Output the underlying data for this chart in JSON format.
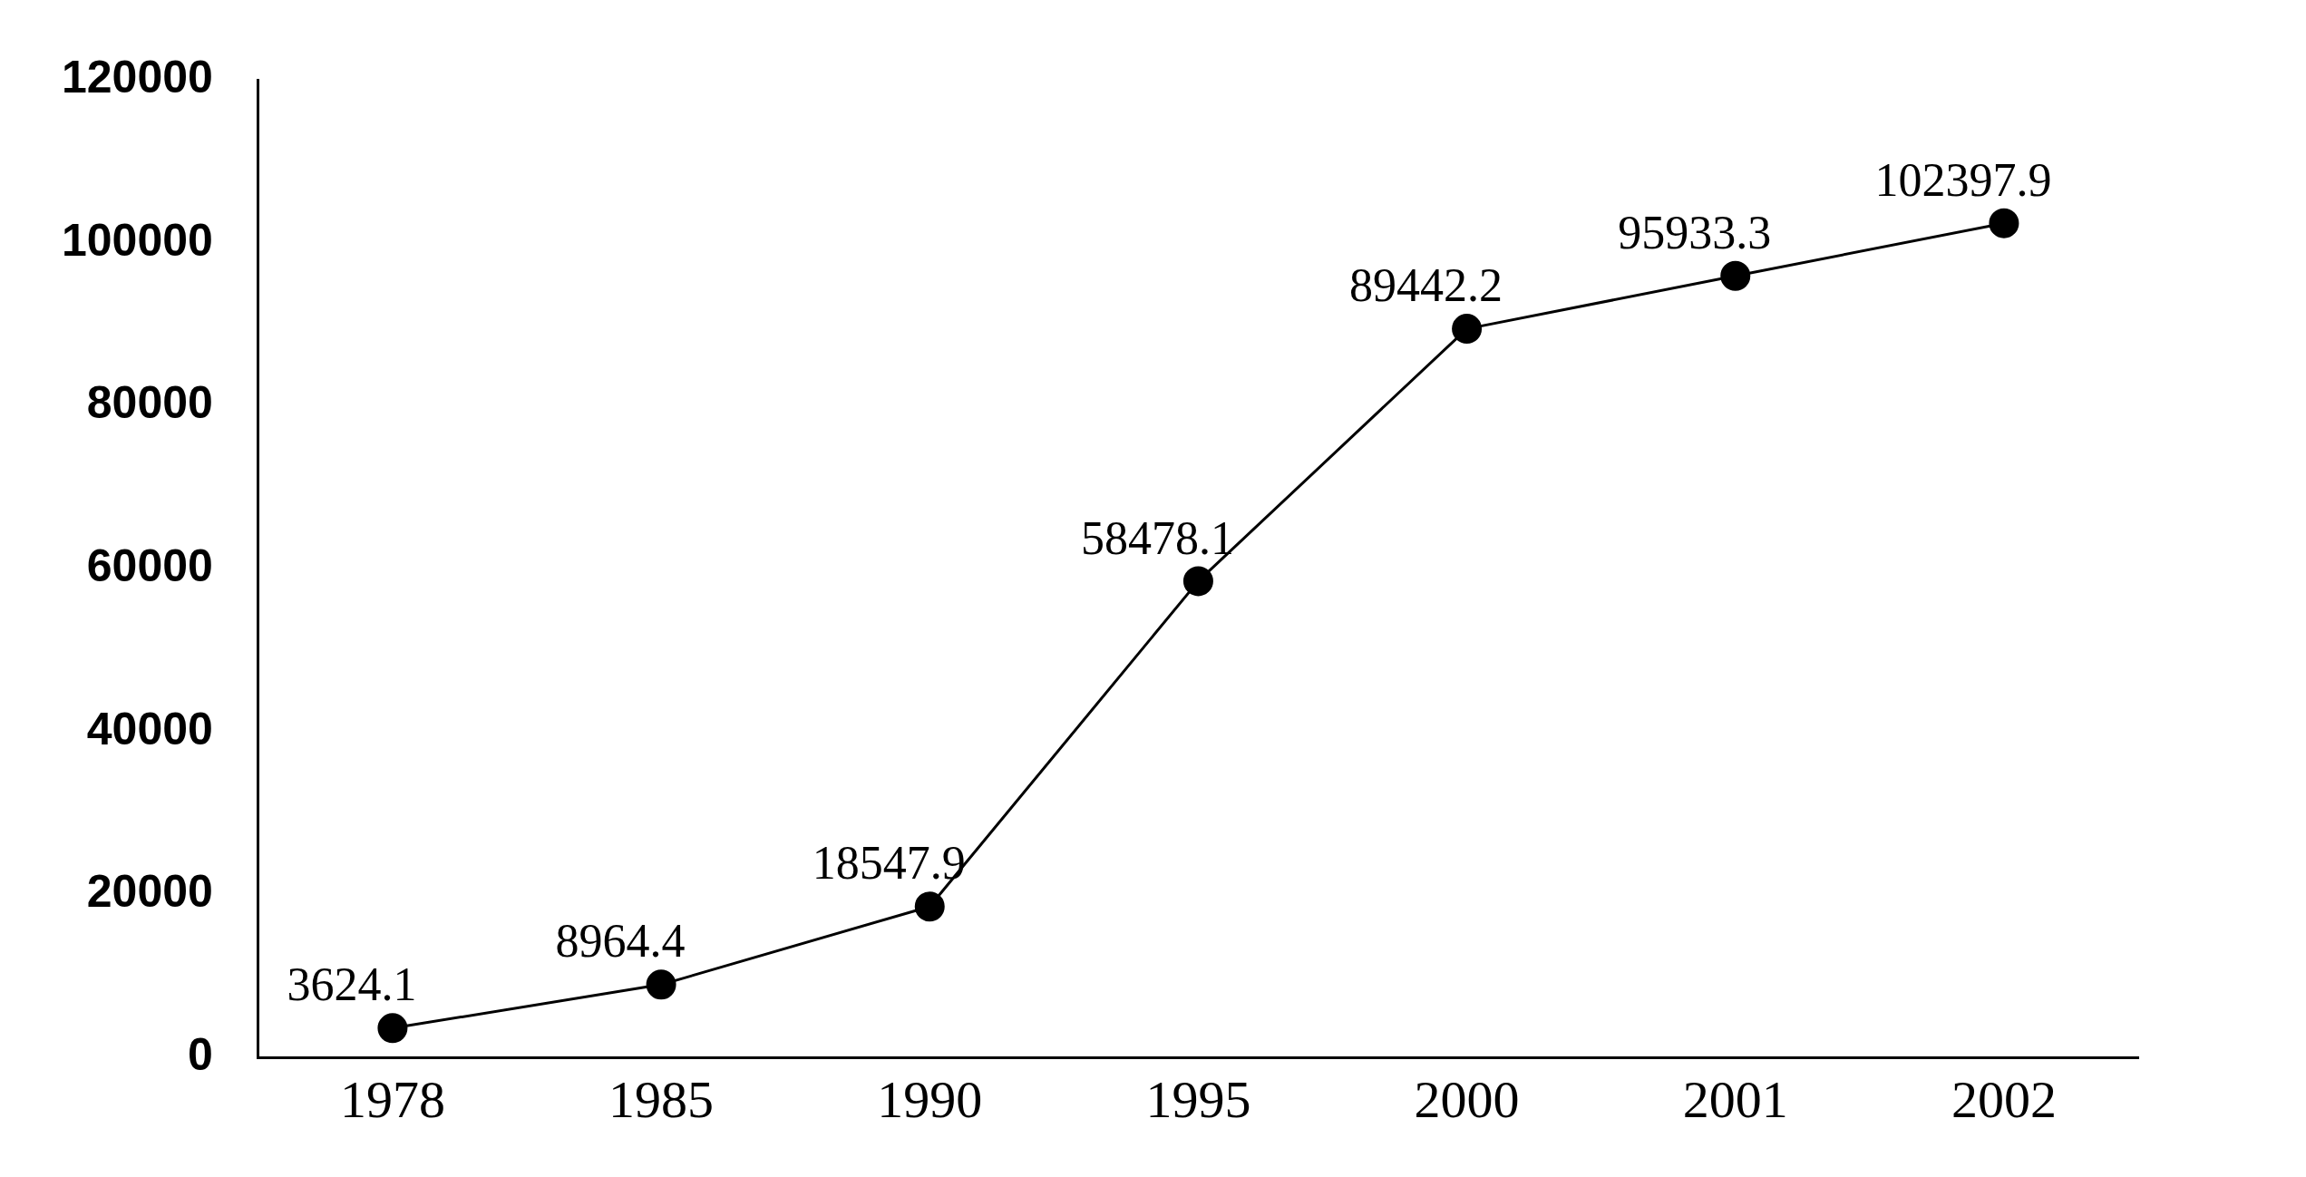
{
  "chart_data": {
    "type": "line",
    "categories": [
      "1978",
      "1985",
      "1990",
      "1995",
      "2000",
      "2001",
      "2002"
    ],
    "series": [
      {
        "color": "#000000",
        "values": [
          3624.1,
          8964.4,
          18547.9,
          58478.1,
          89442.2,
          95933.3,
          102397.9
        ]
      }
    ],
    "data_labels": true,
    "ylim": [
      0,
      120000
    ],
    "yticks": [
      0,
      20000,
      40000,
      60000,
      80000,
      100000,
      120000
    ],
    "grid": false,
    "legend": false,
    "marker": "circle",
    "line_style": "solid"
  }
}
